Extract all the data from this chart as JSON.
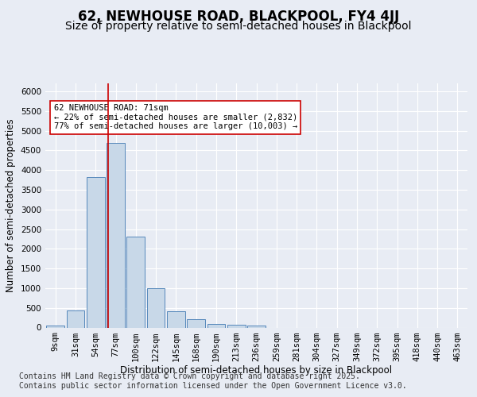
{
  "title1": "62, NEWHOUSE ROAD, BLACKPOOL, FY4 4JJ",
  "title2": "Size of property relative to semi-detached houses in Blackpool",
  "xlabel": "Distribution of semi-detached houses by size in Blackpool",
  "ylabel": "Number of semi-detached properties",
  "categories": [
    "9sqm",
    "31sqm",
    "54sqm",
    "77sqm",
    "100sqm",
    "122sqm",
    "145sqm",
    "168sqm",
    "190sqm",
    "213sqm",
    "236sqm",
    "259sqm",
    "281sqm",
    "304sqm",
    "327sqm",
    "349sqm",
    "372sqm",
    "395sqm",
    "418sqm",
    "440sqm",
    "463sqm"
  ],
  "values": [
    50,
    430,
    3820,
    4680,
    2300,
    1000,
    410,
    210,
    100,
    70,
    60,
    0,
    0,
    0,
    0,
    0,
    0,
    0,
    0,
    0,
    0
  ],
  "bar_color": "#c8d8e8",
  "bar_edge_color": "#5588bb",
  "vline_color": "#cc0000",
  "annotation_box_text": "62 NEWHOUSE ROAD: 71sqm\n← 22% of semi-detached houses are smaller (2,832)\n77% of semi-detached houses are larger (10,003) →",
  "ylim": [
    0,
    6200
  ],
  "yticks": [
    0,
    500,
    1000,
    1500,
    2000,
    2500,
    3000,
    3500,
    4000,
    4500,
    5000,
    5500,
    6000
  ],
  "footer1": "Contains HM Land Registry data © Crown copyright and database right 2025.",
  "footer2": "Contains public sector information licensed under the Open Government Licence v3.0.",
  "background_color": "#e8ecf4",
  "title_fontsize": 12,
  "subtitle_fontsize": 10,
  "axis_label_fontsize": 8.5,
  "tick_fontsize": 7.5,
  "footer_fontsize": 7,
  "annot_fontsize": 7.5
}
